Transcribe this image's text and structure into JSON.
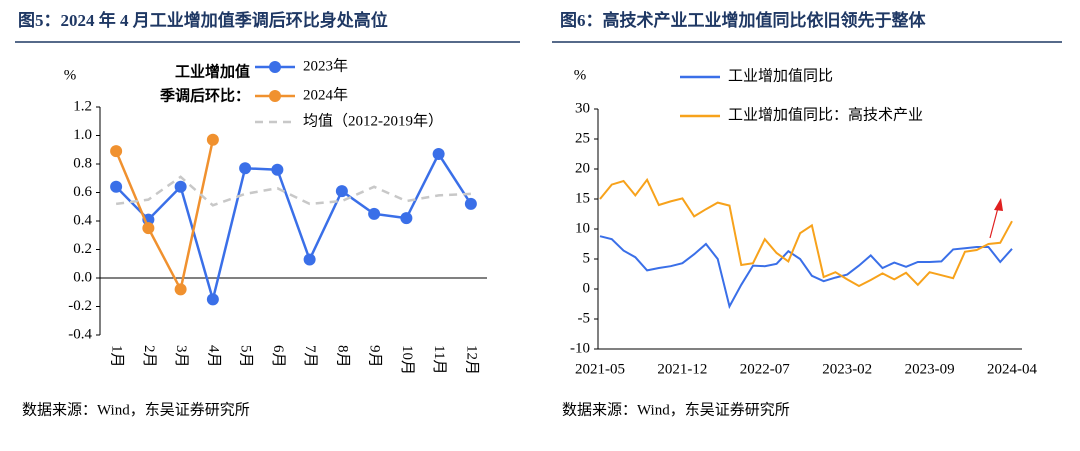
{
  "chart_data": [
    {
      "type": "line",
      "title": "图5：2024 年 4 月工业增加值季调后环比身处高位",
      "source": "数据来源：Wind，东吴证券研究所",
      "ylabel": "%",
      "legend_title": [
        "工业增加值",
        "季调后环比："
      ],
      "markers": true,
      "categories": [
        "1月",
        "2月",
        "3月",
        "4月",
        "5月",
        "6月",
        "7月",
        "8月",
        "9月",
        "10月",
        "11月",
        "12月"
      ],
      "series": [
        {
          "name": "2023年",
          "color": "#3a6fe8",
          "values": [
            0.64,
            0.41,
            0.64,
            -0.15,
            0.77,
            0.76,
            0.13,
            0.61,
            0.45,
            0.42,
            0.87,
            0.52
          ]
        },
        {
          "name": "2024年",
          "color": "#f0912f",
          "values": [
            0.89,
            0.35,
            -0.08,
            0.97,
            null,
            null,
            null,
            null,
            null,
            null,
            null,
            null
          ]
        },
        {
          "name": "均值（2012-2019年）",
          "color": "#c8c8c8",
          "dash": true,
          "values": [
            0.52,
            0.55,
            0.71,
            0.51,
            0.59,
            0.63,
            0.52,
            0.54,
            0.64,
            0.54,
            0.58,
            0.59
          ]
        }
      ],
      "ylim": [
        -0.4,
        1.2
      ],
      "yticks": [
        1.2,
        {
          "value": 1.0,
          "label": "1.0"
        },
        0.8,
        0.6,
        0.4,
        0.2,
        {
          "value": 0,
          "label": "0.0"
        },
        -0.2,
        -0.4
      ]
    },
    {
      "type": "line",
      "title": "图6：高技术产业工业增加值同比依旧领先于整体",
      "source": "数据来源：Wind，东吴证券研究所",
      "ylabel": "%",
      "markers": false,
      "categories": [
        "2021-05",
        null,
        null,
        null,
        null,
        null,
        null,
        "2021-12",
        null,
        null,
        null,
        null,
        null,
        null,
        "2022-07",
        null,
        null,
        null,
        null,
        null,
        null,
        "2023-02",
        null,
        null,
        null,
        null,
        null,
        null,
        "2023-09",
        null,
        null,
        null,
        null,
        null,
        null,
        "2024-04"
      ],
      "series": [
        {
          "name": "工业增加值同比",
          "color": "#3a6fe8",
          "values": [
            8.8,
            8.3,
            6.4,
            5.3,
            3.1,
            3.5,
            3.8,
            4.3,
            5.8,
            7.5,
            5.0,
            -2.9,
            0.7,
            3.9,
            3.8,
            4.2,
            6.3,
            5.0,
            2.2,
            1.3,
            1.9,
            2.4,
            3.9,
            5.6,
            3.5,
            4.4,
            3.7,
            4.5,
            4.5,
            4.6,
            6.6,
            6.8,
            7.0,
            7.0,
            4.5,
            6.7
          ]
        },
        {
          "name": "工业增加值同比：高技术产业",
          "color": "#f7a21b",
          "values": [
            15.0,
            17.4,
            18.0,
            15.6,
            18.2,
            14.0,
            14.6,
            15.1,
            12.1,
            13.3,
            14.4,
            13.9,
            4.0,
            4.3,
            8.3,
            6.0,
            4.6,
            9.3,
            10.6,
            2.0,
            2.8,
            1.6,
            0.5,
            1.5,
            2.6,
            1.6,
            2.7,
            0.7,
            2.8,
            2.3,
            1.8,
            6.2,
            6.5,
            7.5,
            7.7,
            11.3
          ]
        }
      ],
      "ylim": [
        -10,
        30
      ],
      "yticks": [
        30,
        25,
        20,
        15,
        10,
        5,
        0,
        -5,
        -10
      ]
    }
  ]
}
